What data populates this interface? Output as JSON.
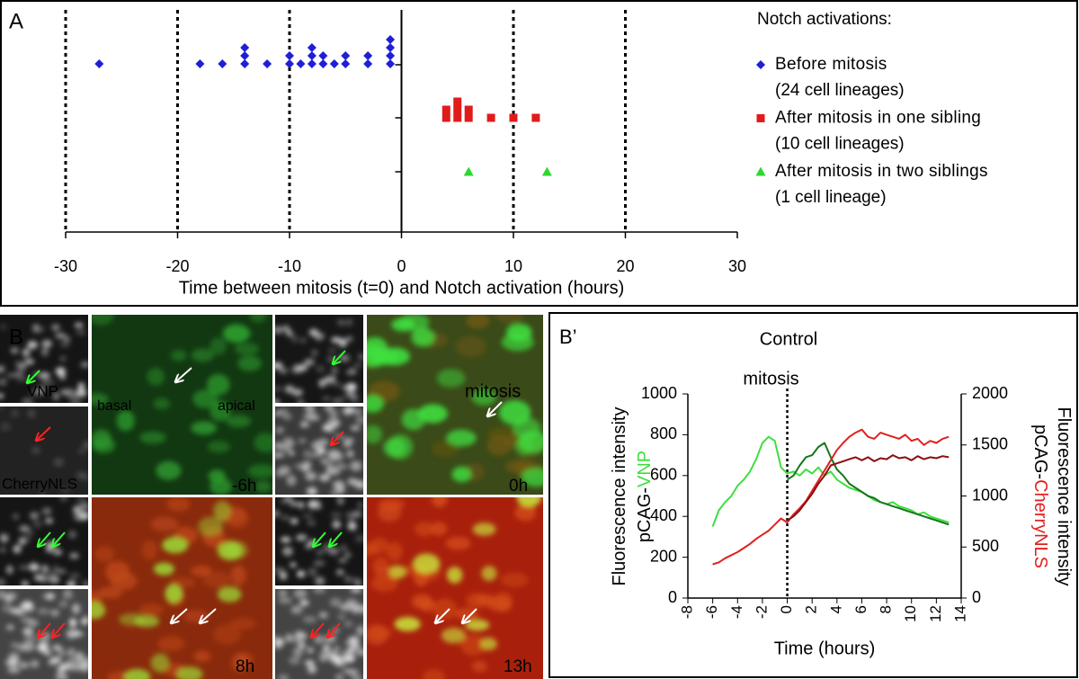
{
  "chart_data": [
    {
      "type": "scatter",
      "panel_label": "A",
      "xlabel": "Time between mitosis (t=0) and Notch activation (hours)",
      "xlim": [
        -30,
        30
      ],
      "xticks": [
        -30,
        -20,
        -10,
        0,
        10,
        20,
        30
      ],
      "ylim": [
        0,
        4
      ],
      "grid": true,
      "legend_title": "Notch activations:",
      "legend": "right",
      "series": [
        {
          "name": "Before mitosis",
          "detail": "(24 cell lineages)",
          "color": "#1f1fd6",
          "marker": "diamond",
          "x": [
            -27,
            -18,
            -16,
            -14,
            -14,
            -14,
            -12,
            -10,
            -10,
            -9,
            -8,
            -8,
            -8,
            -7,
            -7,
            -6,
            -5,
            -5,
            -3,
            -3,
            -1,
            -1,
            -1,
            -1
          ],
          "y": [
            3,
            3,
            3,
            3,
            3.15,
            3.3,
            3,
            3,
            3.15,
            3,
            3,
            3.15,
            3.3,
            3,
            3.15,
            3,
            3,
            3.15,
            3,
            3.15,
            3,
            3.15,
            3.3,
            3.45
          ]
        },
        {
          "name": "After mitosis in one sibling",
          "detail": "(10 cell lineages)",
          "color": "#e01b1b",
          "marker": "square",
          "x": [
            4,
            4,
            5,
            5,
            5,
            6,
            6,
            8,
            10,
            12
          ],
          "y": [
            2,
            2.15,
            2,
            2.15,
            2.3,
            2,
            2.15,
            2,
            2,
            2
          ]
        },
        {
          "name": "After mitosis in two siblings",
          "detail": "(1 cell lineage)",
          "color": "#2ed82e",
          "marker": "triangle",
          "x": [
            6,
            13
          ],
          "y": [
            1,
            1
          ]
        }
      ]
    },
    {
      "type": "line",
      "panel_label": "B’",
      "title": "Control",
      "annotation": "mitosis",
      "annotation_x": 0,
      "xlabel": "Time (hours)",
      "ylabel": {
        "line1": "Fluorescence intensity",
        "line2": "pCAG-",
        "line2_colored": "VNP"
      },
      "y2label": {
        "line1": "Fluorescence intensity",
        "line2": "pCAG-",
        "line2_colored": "CherryNLS"
      },
      "xlim": [
        -8,
        14
      ],
      "xticks": [
        -8,
        -6,
        -4,
        -2,
        0,
        2,
        4,
        6,
        8,
        10,
        12,
        14
      ],
      "ylim": [
        0,
        1000
      ],
      "yticks": [
        0,
        200,
        400,
        600,
        800,
        1000
      ],
      "y2lim": [
        0,
        2000
      ],
      "y2ticks": [
        0,
        500,
        1000,
        1500,
        2000
      ],
      "x": [
        -6,
        -5.5,
        -5,
        -4.5,
        -4,
        -3.5,
        -3,
        -2.5,
        -2,
        -1.5,
        -1,
        -0.5,
        0,
        0.5,
        1,
        1.5,
        2,
        2.5,
        3,
        3.5,
        4,
        4.5,
        5,
        5.5,
        6,
        6.5,
        7,
        7.5,
        8,
        8.5,
        9,
        9.5,
        10,
        10.5,
        11,
        11.5,
        12,
        12.5,
        13
      ],
      "series": [
        {
          "color": "#3ede3e",
          "axis": "y",
          "values": [
            350,
            430,
            470,
            500,
            550,
            580,
            620,
            680,
            760,
            790,
            770,
            640,
            610,
            620,
            600,
            630,
            610,
            640,
            600,
            620,
            580,
            560,
            540,
            530,
            520,
            500,
            480,
            470,
            460,
            470,
            450,
            440,
            430,
            410,
            420,
            400,
            390,
            380,
            370
          ]
        },
        {
          "color": "#16761a",
          "axis": "y",
          "values": [
            null,
            null,
            null,
            null,
            null,
            null,
            null,
            null,
            null,
            null,
            null,
            null,
            580,
            600,
            650,
            690,
            700,
            740,
            760,
            690,
            630,
            600,
            560,
            540,
            520,
            500,
            490,
            470,
            460,
            450,
            440,
            430,
            420,
            410,
            400,
            390,
            380,
            370,
            360
          ]
        },
        {
          "color": "#e02020",
          "axis": "y2",
          "values": [
            330,
            350,
            390,
            420,
            450,
            490,
            530,
            580,
            620,
            660,
            720,
            780,
            740,
            820,
            880,
            950,
            1050,
            1150,
            1250,
            1350,
            1450,
            1520,
            1580,
            1620,
            1650,
            1580,
            1560,
            1620,
            1600,
            1580,
            1560,
            1600,
            1540,
            1560,
            1500,
            1540,
            1520,
            1560,
            1580
          ]
        },
        {
          "color": "#8a0f0f",
          "axis": "y2",
          "values": [
            null,
            null,
            null,
            null,
            null,
            null,
            null,
            null,
            null,
            null,
            null,
            null,
            760,
            800,
            860,
            940,
            1020,
            1120,
            1200,
            1300,
            1320,
            1340,
            1360,
            1380,
            1350,
            1380,
            1340,
            1370,
            1360,
            1400,
            1370,
            1380,
            1350,
            1390,
            1360,
            1380,
            1370,
            1390,
            1380
          ]
        }
      ]
    }
  ],
  "panel_b": {
    "label": "B",
    "channel_green": "VNP",
    "channel_red": "CherryNLS",
    "basal": "basal",
    "apical": "apical",
    "time_1": "-6h",
    "time_2": "0h",
    "time_3": "8h",
    "time_4": "13h",
    "event": "mitosis"
  }
}
